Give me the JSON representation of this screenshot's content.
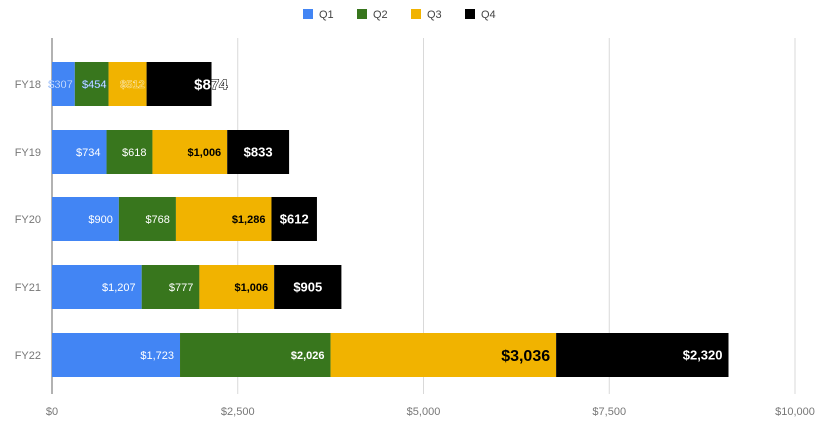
{
  "chart_data": {
    "type": "bar",
    "orientation": "horizontal",
    "stacked": true,
    "categories": [
      "FY18",
      "FY19",
      "FY20",
      "FY21",
      "FY22"
    ],
    "series": [
      {
        "name": "Q1",
        "color": "#4285f4",
        "values": [
          307,
          734,
          900,
          1207,
          1723
        ],
        "labels": [
          "$307",
          "$734",
          "$900",
          "$1,207",
          "$1,723"
        ]
      },
      {
        "name": "Q2",
        "color": "#38761d",
        "values": [
          454,
          618,
          768,
          777,
          2026
        ],
        "labels": [
          "$454",
          "$618",
          "$768",
          "$777",
          "$2,026"
        ]
      },
      {
        "name": "Q3",
        "color": "#f1b300",
        "values": [
          512,
          1006,
          1286,
          1006,
          3036
        ],
        "labels": [
          "$512",
          "$1,006",
          "$1,286",
          "$1,006",
          "$3,036"
        ]
      },
      {
        "name": "Q4",
        "color": "#000000",
        "values": [
          874,
          833,
          612,
          905,
          2320
        ],
        "labels": [
          "$874",
          "$833",
          "$612",
          "$905",
          "$2,320"
        ]
      }
    ],
    "xlim": [
      0,
      10000
    ],
    "xticks": [
      0,
      2500,
      5000,
      7500,
      10000
    ],
    "xtick_labels": [
      "$0",
      "$2,500",
      "$5,000",
      "$7,500",
      "$10,000"
    ],
    "title": "",
    "xlabel": "",
    "ylabel": "",
    "grid": true,
    "legend": "top-center"
  }
}
